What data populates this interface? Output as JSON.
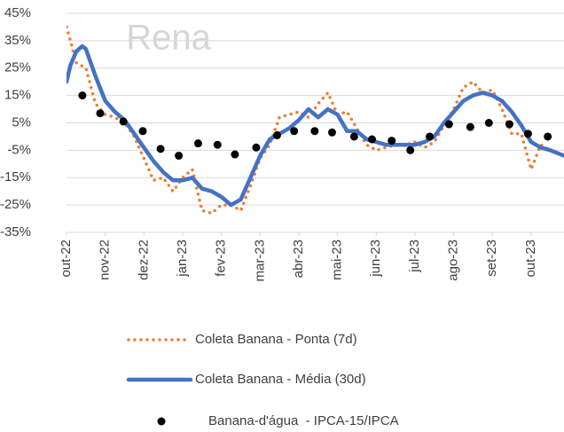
{
  "chart_data": {
    "type": "line",
    "watermark": "Rena",
    "xticks": [
      {
        "value": 0,
        "label": "out-22"
      },
      {
        "value": 1,
        "label": "nov-22"
      },
      {
        "value": 2,
        "label": "dez-22"
      },
      {
        "value": 3,
        "label": "jan-23"
      },
      {
        "value": 4,
        "label": "fev-23"
      },
      {
        "value": 5,
        "label": "mar-23"
      },
      {
        "value": 6,
        "label": "abr-23"
      },
      {
        "value": 7,
        "label": "mai-23"
      },
      {
        "value": 8,
        "label": "jun-23"
      },
      {
        "value": 9,
        "label": "jul-23"
      },
      {
        "value": 10,
        "label": "ago-23"
      },
      {
        "value": 11,
        "label": "set-23"
      },
      {
        "value": 12,
        "label": "out-23"
      }
    ],
    "xlim": [
      0,
      12.85
    ],
    "ylim": [
      -35,
      45
    ],
    "yticks": [
      {
        "value": -35,
        "label": "-35%"
      },
      {
        "value": -25,
        "label": "-25%"
      },
      {
        "value": -15,
        "label": "-15%"
      },
      {
        "value": -5,
        "label": "-5%"
      },
      {
        "value": 5,
        "label": "5%"
      },
      {
        "value": 15,
        "label": "15%"
      },
      {
        "value": 25,
        "label": "25%"
      },
      {
        "value": 35,
        "label": "35%"
      },
      {
        "value": 45,
        "label": "45%"
      }
    ],
    "grid": true,
    "series": [
      {
        "name": "Coleta Banana - Ponta (7d)",
        "color": "#ed7d31",
        "style": "dotted",
        "x": [
          0,
          0.1,
          0.25,
          0.5,
          0.75,
          1,
          1.25,
          1.5,
          1.75,
          2,
          2.25,
          2.5,
          2.75,
          3,
          3.25,
          3.5,
          3.75,
          4,
          4.25,
          4.5,
          4.75,
          5,
          5.25,
          5.5,
          5.75,
          6,
          6.25,
          6.5,
          6.75,
          7,
          7.25,
          7.5,
          7.75,
          8,
          8.25,
          8.5,
          8.75,
          9,
          9.25,
          9.5,
          9.75,
          10,
          10.25,
          10.5,
          10.75,
          11,
          11.25,
          11.5,
          11.75,
          12,
          12.25,
          12.5,
          12.85
        ],
        "values": [
          40,
          35,
          27,
          25,
          12,
          8,
          7,
          5,
          0,
          -8,
          -16,
          -15,
          -20,
          -15,
          -12,
          -27,
          -28,
          -25,
          -25,
          -27,
          -18,
          -8,
          -3,
          7,
          8,
          9,
          7,
          12,
          16,
          8,
          9,
          3,
          -3,
          -5,
          -4,
          -3,
          -3,
          -2,
          -4,
          -2,
          4,
          10,
          18,
          20,
          16,
          17,
          10,
          1,
          1,
          -12,
          -3,
          -5,
          -7
        ]
      },
      {
        "name": "Coleta Banana - Média (30d)",
        "color": "#4472c4",
        "style": "solid",
        "x": [
          0,
          0.1,
          0.25,
          0.4,
          0.5,
          0.75,
          1,
          1.25,
          1.5,
          1.75,
          2,
          2.25,
          2.5,
          2.75,
          3,
          3.25,
          3.5,
          3.75,
          4,
          4.25,
          4.5,
          4.75,
          5,
          5.25,
          5.5,
          5.75,
          6,
          6.25,
          6.5,
          6.75,
          7,
          7.25,
          7.5,
          7.75,
          8,
          8.25,
          8.5,
          8.75,
          9,
          9.25,
          9.5,
          9.75,
          10,
          10.25,
          10.5,
          10.75,
          11,
          11.25,
          11.5,
          11.75,
          12,
          12.25,
          12.5,
          12.85
        ],
        "values": [
          20,
          26,
          31,
          33,
          32,
          22,
          13,
          9,
          6,
          1,
          -4,
          -9,
          -13,
          -16,
          -16,
          -15,
          -19,
          -20,
          -22,
          -25,
          -23,
          -15,
          -7,
          -1,
          1,
          3,
          6,
          10,
          7,
          10,
          8,
          2,
          2,
          -1,
          -2,
          -3,
          -3,
          -3,
          -3,
          -2,
          0,
          5,
          9,
          13,
          15,
          16,
          15,
          13,
          9,
          4,
          -2,
          -4,
          -5,
          -7
        ]
      },
      {
        "name": "Banana-d'água  - IPCA-15/IPCA",
        "color": "#000000",
        "style": "dots",
        "x": [
          0.41,
          0.87,
          1.47,
          1.97,
          2.43,
          2.9,
          3.4,
          3.9,
          4.35,
          4.9,
          5.44,
          5.88,
          6.41,
          6.86,
          7.43,
          7.89,
          8.4,
          8.88,
          9.38,
          9.88,
          10.43,
          10.91,
          11.44,
          11.92,
          12.43
        ],
        "values": [
          15,
          8.5,
          5.5,
          2,
          -4.5,
          -7,
          -2.5,
          -3,
          -6.5,
          -4,
          0.5,
          2,
          2,
          1.5,
          0,
          -1,
          -1.5,
          -5,
          0,
          4.5,
          3.5,
          5,
          4.5,
          1,
          0
        ]
      }
    ]
  }
}
